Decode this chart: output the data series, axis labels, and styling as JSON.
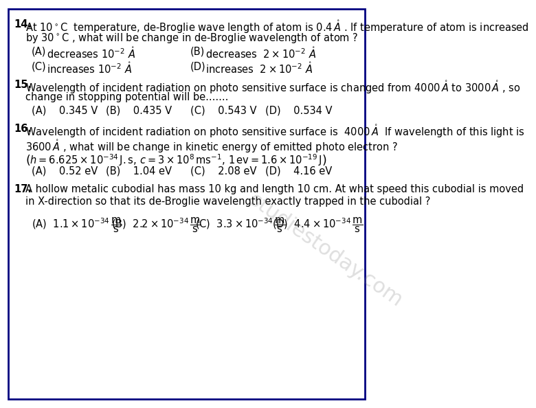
{
  "background_color": "#ffffff",
  "border_color": "#000080",
  "text_color": "#000000",
  "questions": [
    {
      "num": "14.",
      "lines": [
        "At $10^\\circ$C  temperature, de-Broglie wave length of atom is $0.4\\mathring{A}$ . If temperature of atom is increased",
        "by $30^\\circ$C , what will be change in de-Broglie wavelength of atom ?"
      ],
      "options": [
        [
          "(A)",
          "decreases $10^{-2}$ $\\mathring{A}$",
          "(B)",
          "decreases $2\\times10^{-2}$ $\\mathring{A}$"
        ],
        [
          "(C)",
          "increases $10^{-2}$ $\\mathring{A}$",
          "(D)",
          "increases $2\\times10^{-2}$ $\\mathring{A}$"
        ]
      ],
      "opt_rows": 2
    },
    {
      "num": "15.",
      "lines": [
        "Wavelength of incident radiation on photo sensitive surface is changed from $4000\\mathring{A}$ to $3000\\mathring{A}$ , so",
        "change in stopping potential will be......."
      ],
      "options": [
        [
          "(A)    0.345 V",
          "(B)    0.435 V",
          "(C)    0.543 V",
          "(D)    0.534 V"
        ]
      ],
      "opt_rows": 1
    },
    {
      "num": "16.",
      "lines": [
        "Wavelength of incident radiation on photo sensitive surface is  $4000\\mathring{A}$  If wavelength of this light is",
        "",
        "$3600\\mathring{A}$ , what will be change in kinetic energy of emitted photo electron ?",
        "",
        "$\\left(h = 6.625\\times10^{-34}$ J.s, $c = 3\\times10^{8}$ ms$^{-1}$, $1$ev $= 1.6\\times10^{-19}$ J$\\right)$"
      ],
      "options": [
        [
          "(A)    0.52 eV",
          "(B)    1.04 eV",
          "(C)    2.08 eV",
          "(D)    4.16 eV"
        ]
      ],
      "opt_rows": 1
    },
    {
      "num": "17.",
      "lines": [
        "A hollow metalic cubodial has mass 10 kg and length 10 cm. At what speed this cubodial is moved",
        "in X-direction so that its de-Broglie wavelength exactly trapped in the cubodial ?"
      ],
      "options": [
        [
          "(A)  $1.1\\times10^{-34}\\,\\dfrac{m}{s}$",
          "(B)  $2.2\\times10^{-34}\\,\\dfrac{m}{s}$",
          "(C)  $3.3\\times10^{-34}\\,\\dfrac{m}{s}$",
          "(D)  $4.4\\times10^{-34}\\,\\dfrac{m}{s}$"
        ]
      ],
      "opt_rows": 1
    }
  ],
  "watermark": "studiestoday.com",
  "font_size_q": 11,
  "font_size_opt": 11
}
